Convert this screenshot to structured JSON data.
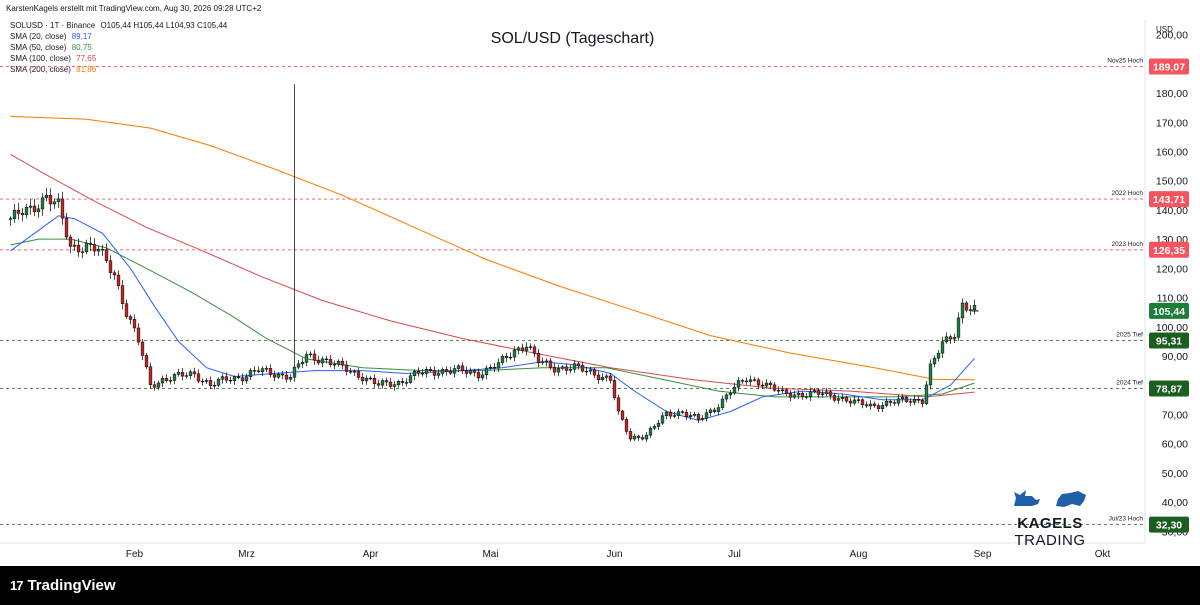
{
  "header": {
    "attribution": "KarstenKagels erstellt mit TradingView.com, Aug 30, 2026 09:28 UTC+2",
    "symbol_line": "SOLUSD · 1T · Binance",
    "ohlc": "O105,44 H105,44 L104,93 C105,44"
  },
  "legend": [
    {
      "label": "SMA (20, close)",
      "value": "89,17",
      "color": "#2962ff"
    },
    {
      "label": "SMA (50, close)",
      "value": "80,75",
      "color": "#388e3c"
    },
    {
      "label": "SMA (100, close)",
      "value": "77,65",
      "color": "#d84a4a"
    },
    {
      "label": "SMA (200, close)",
      "value": "81,86",
      "color": "#f57c00"
    }
  ],
  "footer": {
    "logo_mark": "17",
    "logo_text": "TradingView"
  },
  "brand": {
    "name_bold": "KAGELS",
    "name_light": "TRADING"
  },
  "chart_data": {
    "type": "candlestick",
    "title": "SOL/USD (Tageschart)",
    "currency": "USD",
    "y_axis": {
      "ticks": [
        "200,00",
        "190,00",
        "180,00",
        "170,00",
        "160,00",
        "150,00",
        "140,00",
        "130,00",
        "120,00",
        "110,00",
        "100,00",
        "90,00",
        "80,00",
        "70,00",
        "60,00",
        "50,00",
        "40,00",
        "30,00"
      ],
      "ylim": [
        26,
        205
      ]
    },
    "x_axis": {
      "labels": [
        "Feb",
        "Mrz",
        "Apr",
        "Mai",
        "Jun",
        "Jul",
        "Aug",
        "Sep",
        "Okt"
      ]
    },
    "levels": [
      {
        "name": "Nov25 Hoch",
        "value": 189.07,
        "label": "189,07",
        "color": "#f7525f",
        "style": "dashed"
      },
      {
        "name": "2022 Hoch",
        "value": 143.71,
        "label": "143,71",
        "color": "#f7525f",
        "style": "dashed"
      },
      {
        "name": "2023 Hoch",
        "value": 126.35,
        "label": "126,35",
        "color": "#f7525f",
        "style": "dashed"
      },
      {
        "name": "2025 Tief",
        "value": 95.31,
        "label": "95,31",
        "color": "#1b5e20",
        "style": "dashed"
      },
      {
        "name": "2024 Tief",
        "value": 78.87,
        "label": "78,87",
        "color": "#1b5e20",
        "style": "dashed"
      },
      {
        "name": "Jul/23 Hoch",
        "value": 32.3,
        "label": "32,30",
        "color": "#1b5e20",
        "style": "dashed"
      }
    ],
    "last_price": {
      "value": 105.44,
      "label": "105,44",
      "color": "#1b7f3a"
    },
    "close_path": [
      [
        "2026-01-01",
        137
      ],
      [
        "2026-01-06",
        140
      ],
      [
        "2026-01-10",
        145
      ],
      [
        "2026-01-13",
        141
      ],
      [
        "2026-01-16",
        127
      ],
      [
        "2026-01-20",
        128
      ],
      [
        "2026-01-23",
        126
      ],
      [
        "2026-01-27",
        118
      ],
      [
        "2026-01-30",
        105
      ],
      [
        "2026-02-02",
        95
      ],
      [
        "2026-02-05",
        80
      ],
      [
        "2026-02-08",
        82
      ],
      [
        "2026-02-12",
        83
      ],
      [
        "2026-02-16",
        84
      ],
      [
        "2026-02-20",
        80
      ],
      [
        "2026-02-24",
        82
      ],
      [
        "2026-02-28",
        83
      ],
      [
        "2026-03-04",
        85
      ],
      [
        "2026-03-08",
        84
      ],
      [
        "2026-03-12",
        83
      ],
      [
        "2026-03-16",
        90
      ],
      [
        "2026-03-20",
        89
      ],
      [
        "2026-03-25",
        86
      ],
      [
        "2026-03-30",
        83
      ],
      [
        "2026-04-03",
        80
      ],
      [
        "2026-04-08",
        81
      ],
      [
        "2026-04-13",
        84
      ],
      [
        "2026-04-18",
        85
      ],
      [
        "2026-04-23",
        85
      ],
      [
        "2026-04-28",
        84
      ],
      [
        "2026-05-03",
        87
      ],
      [
        "2026-05-07",
        92
      ],
      [
        "2026-05-10",
        94
      ],
      [
        "2026-05-13",
        88
      ],
      [
        "2026-05-17",
        86
      ],
      [
        "2026-05-22",
        86
      ],
      [
        "2026-05-27",
        84
      ],
      [
        "2026-05-31",
        82
      ],
      [
        "2026-06-02",
        70
      ],
      [
        "2026-06-05",
        62
      ],
      [
        "2026-06-09",
        63
      ],
      [
        "2026-06-14",
        70
      ],
      [
        "2026-06-18",
        71
      ],
      [
        "2026-06-22",
        68
      ],
      [
        "2026-06-26",
        72
      ],
      [
        "2026-06-30",
        78
      ],
      [
        "2026-07-04",
        82
      ],
      [
        "2026-07-08",
        81
      ],
      [
        "2026-07-13",
        77
      ],
      [
        "2026-07-18",
        77
      ],
      [
        "2026-07-23",
        77
      ],
      [
        "2026-07-27",
        76
      ],
      [
        "2026-07-31",
        74
      ],
      [
        "2026-08-04",
        73
      ],
      [
        "2026-08-09",
        74
      ],
      [
        "2026-08-14",
        75
      ],
      [
        "2026-08-17",
        75
      ],
      [
        "2026-08-19",
        86
      ],
      [
        "2026-08-22",
        94
      ],
      [
        "2026-08-25",
        98
      ],
      [
        "2026-08-27",
        108
      ],
      [
        "2026-08-29",
        106
      ],
      [
        "2026-08-30",
        105.44
      ]
    ],
    "sma_20": [
      [
        "2026-01-01",
        126
      ],
      [
        "2026-01-07",
        132
      ],
      [
        "2026-01-13",
        138
      ],
      [
        "2026-01-17",
        137
      ],
      [
        "2026-01-24",
        132
      ],
      [
        "2026-01-31",
        120
      ],
      [
        "2026-02-06",
        107
      ],
      [
        "2026-02-12",
        95
      ],
      [
        "2026-02-19",
        86
      ],
      [
        "2026-02-26",
        83
      ],
      [
        "2026-03-08",
        84
      ],
      [
        "2026-03-18",
        85
      ],
      [
        "2026-03-30",
        85
      ],
      [
        "2026-04-10",
        84
      ],
      [
        "2026-04-24",
        85
      ],
      [
        "2026-05-04",
        86
      ],
      [
        "2026-05-14",
        88
      ],
      [
        "2026-05-22",
        87
      ],
      [
        "2026-05-31",
        84
      ],
      [
        "2026-06-06",
        78
      ],
      [
        "2026-06-14",
        71
      ],
      [
        "2026-06-22",
        68
      ],
      [
        "2026-06-30",
        71
      ],
      [
        "2026-07-08",
        76
      ],
      [
        "2026-07-18",
        78
      ],
      [
        "2026-07-28",
        77
      ],
      [
        "2026-08-07",
        75
      ],
      [
        "2026-08-17",
        75
      ],
      [
        "2026-08-24",
        80
      ],
      [
        "2026-08-30",
        89.17
      ]
    ],
    "sma_50": [
      [
        "2026-01-01",
        128
      ],
      [
        "2026-01-08",
        130
      ],
      [
        "2026-01-16",
        130
      ],
      [
        "2026-01-25",
        127
      ],
      [
        "2026-02-04",
        120
      ],
      [
        "2026-02-15",
        112
      ],
      [
        "2026-02-25",
        104
      ],
      [
        "2026-03-06",
        96
      ],
      [
        "2026-03-16",
        89
      ],
      [
        "2026-03-30",
        86
      ],
      [
        "2026-04-14",
        85
      ],
      [
        "2026-04-29",
        85
      ],
      [
        "2026-05-14",
        86
      ],
      [
        "2026-05-30",
        86
      ],
      [
        "2026-06-13",
        82
      ],
      [
        "2026-06-27",
        78
      ],
      [
        "2026-07-11",
        76
      ],
      [
        "2026-07-25",
        76
      ],
      [
        "2026-08-10",
        76
      ],
      [
        "2026-08-22",
        77
      ],
      [
        "2026-08-30",
        80.75
      ]
    ],
    "sma_100": [
      [
        "2026-01-01",
        159
      ],
      [
        "2026-01-10",
        152
      ],
      [
        "2026-01-22",
        143
      ],
      [
        "2026-02-04",
        134
      ],
      [
        "2026-02-18",
        126
      ],
      [
        "2026-03-05",
        117
      ],
      [
        "2026-03-20",
        109
      ],
      [
        "2026-04-06",
        102
      ],
      [
        "2026-04-24",
        96
      ],
      [
        "2026-05-12",
        91
      ],
      [
        "2026-05-31",
        86
      ],
      [
        "2026-06-20",
        82
      ],
      [
        "2026-07-10",
        79
      ],
      [
        "2026-07-30",
        78
      ],
      [
        "2026-08-18",
        76
      ],
      [
        "2026-08-30",
        77.65
      ]
    ],
    "sma_200": [
      [
        "2026-01-01",
        172
      ],
      [
        "2026-01-20",
        171
      ],
      [
        "2026-02-05",
        168
      ],
      [
        "2026-02-20",
        162
      ],
      [
        "2026-03-08",
        154
      ],
      [
        "2026-03-25",
        145
      ],
      [
        "2026-04-12",
        134
      ],
      [
        "2026-04-30",
        123
      ],
      [
        "2026-05-18",
        114
      ],
      [
        "2026-06-05",
        106
      ],
      [
        "2026-06-25",
        97
      ],
      [
        "2026-07-15",
        91
      ],
      [
        "2026-08-05",
        86
      ],
      [
        "2026-08-20",
        82
      ],
      [
        "2026-08-30",
        81.86
      ]
    ],
    "spike": {
      "date": "2026-03-13",
      "high": 183,
      "close": 86
    }
  }
}
